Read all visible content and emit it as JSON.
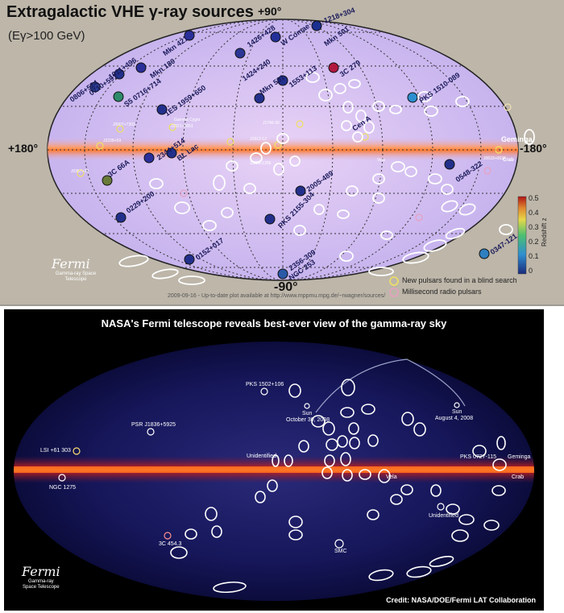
{
  "top_panel": {
    "title": "Extragalactic VHE γ-ray sources",
    "subtitle": "(Eγ>100 GeV)",
    "axis_labels": {
      "north": "+90°",
      "south": "-90°",
      "left": "+180°",
      "right": "-180°"
    },
    "redshift_bar": {
      "title": "Redshift z",
      "ticks": [
        "0.5",
        "0.4",
        "0.3",
        "0.2",
        "0.1",
        "0"
      ]
    },
    "legend": {
      "yellow": "New pulsars found in a blind search",
      "pink": "Millisecond radio pulsars"
    },
    "footer": "2009-09-16 - Up-to-date plot available at http://www.mppmu.mpg.de/~rwagner/sources/",
    "logo": {
      "name": "Fermi",
      "sub": "Gamma-ray Space Telescope"
    },
    "source_labels": [
      "1218+304",
      "Mkn 421",
      "1011+496",
      "Mkn 180",
      "0806+524",
      "0710+591",
      "S5 0716+714",
      "1426+428",
      "W Comae",
      "Mkn 501",
      "3C 279",
      "1424+240",
      "1553+113",
      "Mkn 501",
      "1ES 1959+650",
      "3C 66A",
      "BL Lac",
      "2344+514",
      "0229+200",
      "2005-489",
      "PKS 2155-304",
      "0152+017",
      "2356-309",
      "NGC 253",
      "0548-322",
      "0347-121",
      "PKS 1510-089",
      "Cen A",
      "Geminga",
      "Crab"
    ],
    "faint_labels": [
      "Gamma Cygni",
      "J1746-30",
      "J1813-12",
      "J1826-1256",
      "J2021+3651",
      "J0007+7303",
      "J2238+59",
      "J0357+32",
      "J0633+0632",
      "Vela"
    ]
  },
  "bottom_panel": {
    "title": "NASA's Fermi telescope reveals best-ever view of the gamma-ray sky",
    "labels": {
      "pks1502": "PKS 1502+106",
      "psr1836": "PSR J1836+5925",
      "lsi": "LSI +61 303",
      "ngc1275": "NGC 1275",
      "unid_center": "Unidentified",
      "unid_right": "Unidentified",
      "sun_oct_a": "Sun",
      "sun_oct_b": "October 30, 2008",
      "sun_aug_a": "Sun",
      "sun_aug_b": "August 4, 2008",
      "pks0727": "PKS 0727-115",
      "geminga": "Geminga",
      "crab": "Crab",
      "vela": "Vela",
      "smc": "SMC",
      "gc": "3C 454.3"
    },
    "credit": "Credit: NASA/DOE/Fermi LAT Collaboration",
    "logo": {
      "name": "Fermi",
      "sub_a": "Gamma-ray",
      "sub_b": "Space Telescope"
    }
  },
  "colors": {
    "sky": "#bdb6a9",
    "ellipse": "#c8b8ea",
    "plane": "#ff8a40",
    "bg_dark": "#000000"
  }
}
